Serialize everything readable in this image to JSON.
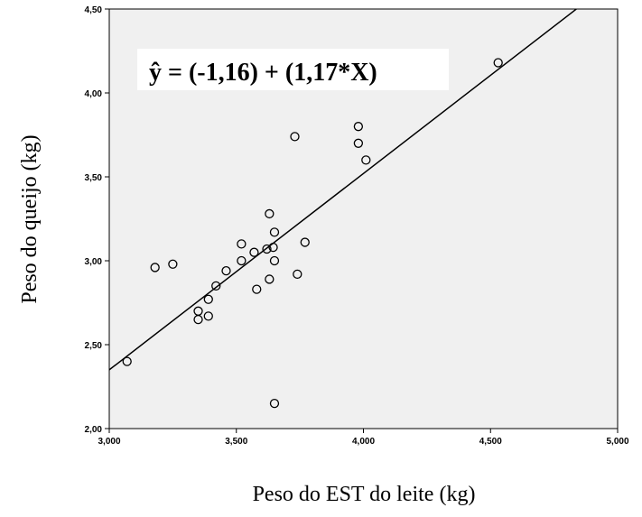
{
  "chart_data": {
    "type": "scatter",
    "xlabel": "Peso do EST do leite (kg)",
    "ylabel": "Peso do queijo (kg)",
    "xlim": [
      3.0,
      5.0
    ],
    "ylim": [
      2.0,
      4.5
    ],
    "x_ticks": [
      "3,000",
      "3,500",
      "4,000",
      "4,500",
      "5,000"
    ],
    "y_ticks": [
      "2,00",
      "2,50",
      "3,00",
      "3,50",
      "4,00",
      "4,50"
    ],
    "x_tick_values": [
      3.0,
      3.5,
      4.0,
      4.5,
      5.0
    ],
    "y_tick_values": [
      2.0,
      2.5,
      3.0,
      3.5,
      4.0,
      4.5
    ],
    "annotation": "ŷ = (-1,16) + (1,17*X)",
    "regression": {
      "intercept": -1.16,
      "slope": 1.17
    },
    "points": [
      {
        "x": 3.07,
        "y": 2.4
      },
      {
        "x": 3.18,
        "y": 2.96
      },
      {
        "x": 3.25,
        "y": 2.98
      },
      {
        "x": 3.35,
        "y": 2.65
      },
      {
        "x": 3.35,
        "y": 2.7
      },
      {
        "x": 3.39,
        "y": 2.67
      },
      {
        "x": 3.39,
        "y": 2.77
      },
      {
        "x": 3.42,
        "y": 2.85
      },
      {
        "x": 3.46,
        "y": 2.94
      },
      {
        "x": 3.52,
        "y": 3.0
      },
      {
        "x": 3.52,
        "y": 3.1
      },
      {
        "x": 3.57,
        "y": 3.05
      },
      {
        "x": 3.58,
        "y": 2.83
      },
      {
        "x": 3.62,
        "y": 3.07
      },
      {
        "x": 3.63,
        "y": 2.89
      },
      {
        "x": 3.63,
        "y": 3.28
      },
      {
        "x": 3.645,
        "y": 3.08
      },
      {
        "x": 3.65,
        "y": 3.0
      },
      {
        "x": 3.65,
        "y": 3.17
      },
      {
        "x": 3.65,
        "y": 2.15
      },
      {
        "x": 3.73,
        "y": 3.74
      },
      {
        "x": 3.74,
        "y": 2.92
      },
      {
        "x": 3.77,
        "y": 3.11
      },
      {
        "x": 3.98,
        "y": 3.7
      },
      {
        "x": 3.98,
        "y": 3.8
      },
      {
        "x": 4.01,
        "y": 3.6
      },
      {
        "x": 4.53,
        "y": 4.18
      }
    ],
    "colors": {
      "plot_background": "#f0f0f0",
      "point_stroke": "#000000",
      "line": "#000000"
    }
  }
}
